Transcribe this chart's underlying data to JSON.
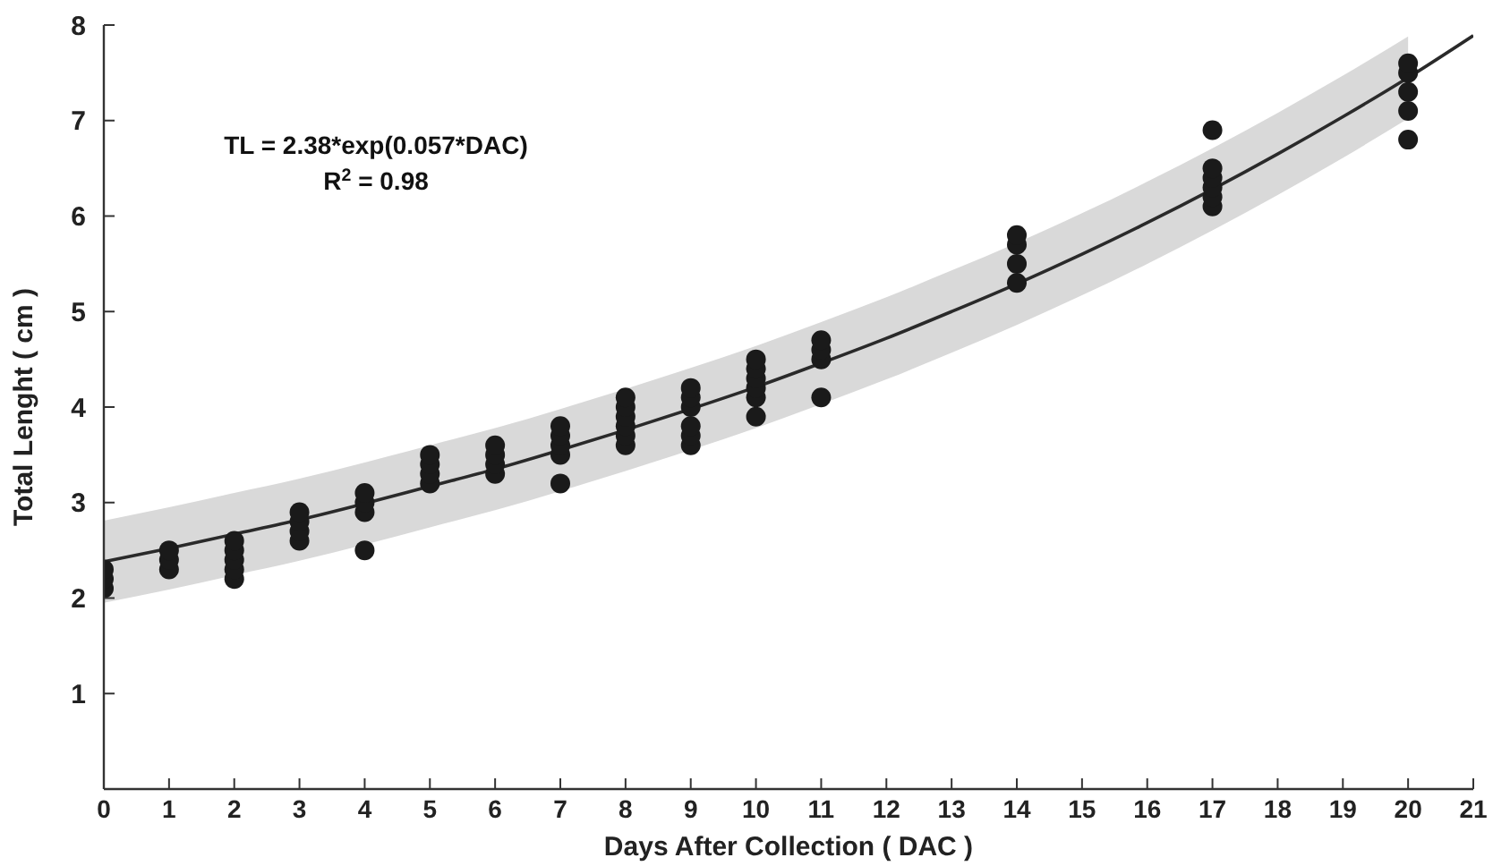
{
  "chart_data": {
    "type": "scatter",
    "xlabel": "Days After Collection ( DAC )",
    "ylabel": "Total Lenght ( cm )",
    "xlim": [
      0,
      21
    ],
    "ylim": [
      0,
      8
    ],
    "xticks": [
      0,
      1,
      2,
      3,
      4,
      5,
      6,
      7,
      8,
      9,
      10,
      11,
      12,
      13,
      14,
      15,
      16,
      17,
      18,
      19,
      20,
      21
    ],
    "yticks": [
      1,
      2,
      3,
      4,
      5,
      6,
      7,
      8
    ],
    "grid": false,
    "marker": "circle",
    "annotations": [
      "TL = 2.38*exp(0.057*DAC)",
      "R$^{2}$ = 0.98"
    ],
    "series": [
      {
        "type": "line",
        "color": "#2a2a2a",
        "line_style": "solid",
        "marker": "none",
        "x": [
          0,
          1,
          2,
          3,
          4,
          5,
          6,
          7,
          8,
          9,
          10,
          11,
          12,
          13,
          14,
          15,
          16,
          17,
          18,
          19,
          20,
          21
        ],
        "values": [
          2.38,
          2.52,
          2.67,
          2.82,
          2.99,
          3.17,
          3.35,
          3.55,
          3.76,
          3.98,
          4.21,
          4.46,
          4.72,
          5.0,
          5.29,
          5.6,
          5.93,
          6.28,
          6.65,
          7.04,
          7.45,
          7.89
        ],
        "lower": [
          1.95,
          2.09,
          2.24,
          2.39,
          2.56,
          2.74,
          2.92,
          3.12,
          3.33,
          3.55,
          3.78,
          4.03,
          4.29,
          4.57,
          4.86,
          5.17,
          5.5,
          5.85,
          6.22,
          6.61,
          7.02,
          null
        ],
        "upper": [
          2.81,
          2.95,
          3.1,
          3.25,
          3.42,
          3.6,
          3.78,
          3.98,
          4.19,
          4.41,
          4.64,
          4.89,
          5.15,
          5.43,
          5.72,
          6.03,
          6.36,
          6.71,
          7.08,
          7.47,
          7.88,
          null
        ]
      },
      {
        "color": "#1a1a1a",
        "x": [
          0,
          0,
          0,
          1,
          1,
          1,
          2,
          2,
          2,
          2,
          2,
          3,
          3,
          3,
          3,
          4,
          4,
          4,
          4,
          5,
          5,
          5,
          5,
          6,
          6,
          6,
          6,
          7,
          7,
          7,
          7,
          7,
          8,
          8,
          8,
          8,
          8,
          8,
          9,
          9,
          9,
          9,
          9,
          9,
          10,
          10,
          10,
          10,
          10,
          10,
          11,
          11,
          11,
          11,
          14,
          14,
          14,
          14,
          17,
          17,
          17,
          17,
          17,
          17,
          20,
          20,
          20,
          20,
          20
        ],
        "values": [
          2.1,
          2.2,
          2.3,
          2.3,
          2.4,
          2.5,
          2.2,
          2.3,
          2.4,
          2.5,
          2.6,
          2.6,
          2.7,
          2.8,
          2.9,
          2.5,
          2.9,
          3.0,
          3.1,
          3.2,
          3.3,
          3.4,
          3.5,
          3.3,
          3.4,
          3.5,
          3.6,
          3.2,
          3.5,
          3.6,
          3.7,
          3.8,
          3.6,
          3.7,
          3.8,
          3.9,
          4.0,
          4.1,
          3.6,
          3.7,
          3.8,
          4.0,
          4.1,
          4.2,
          3.9,
          4.1,
          4.2,
          4.3,
          4.4,
          4.5,
          4.1,
          4.5,
          4.6,
          4.7,
          5.3,
          5.5,
          5.7,
          5.8,
          6.1,
          6.2,
          6.3,
          6.4,
          6.5,
          6.9,
          6.8,
          7.1,
          7.3,
          7.5,
          7.6
        ]
      }
    ]
  }
}
